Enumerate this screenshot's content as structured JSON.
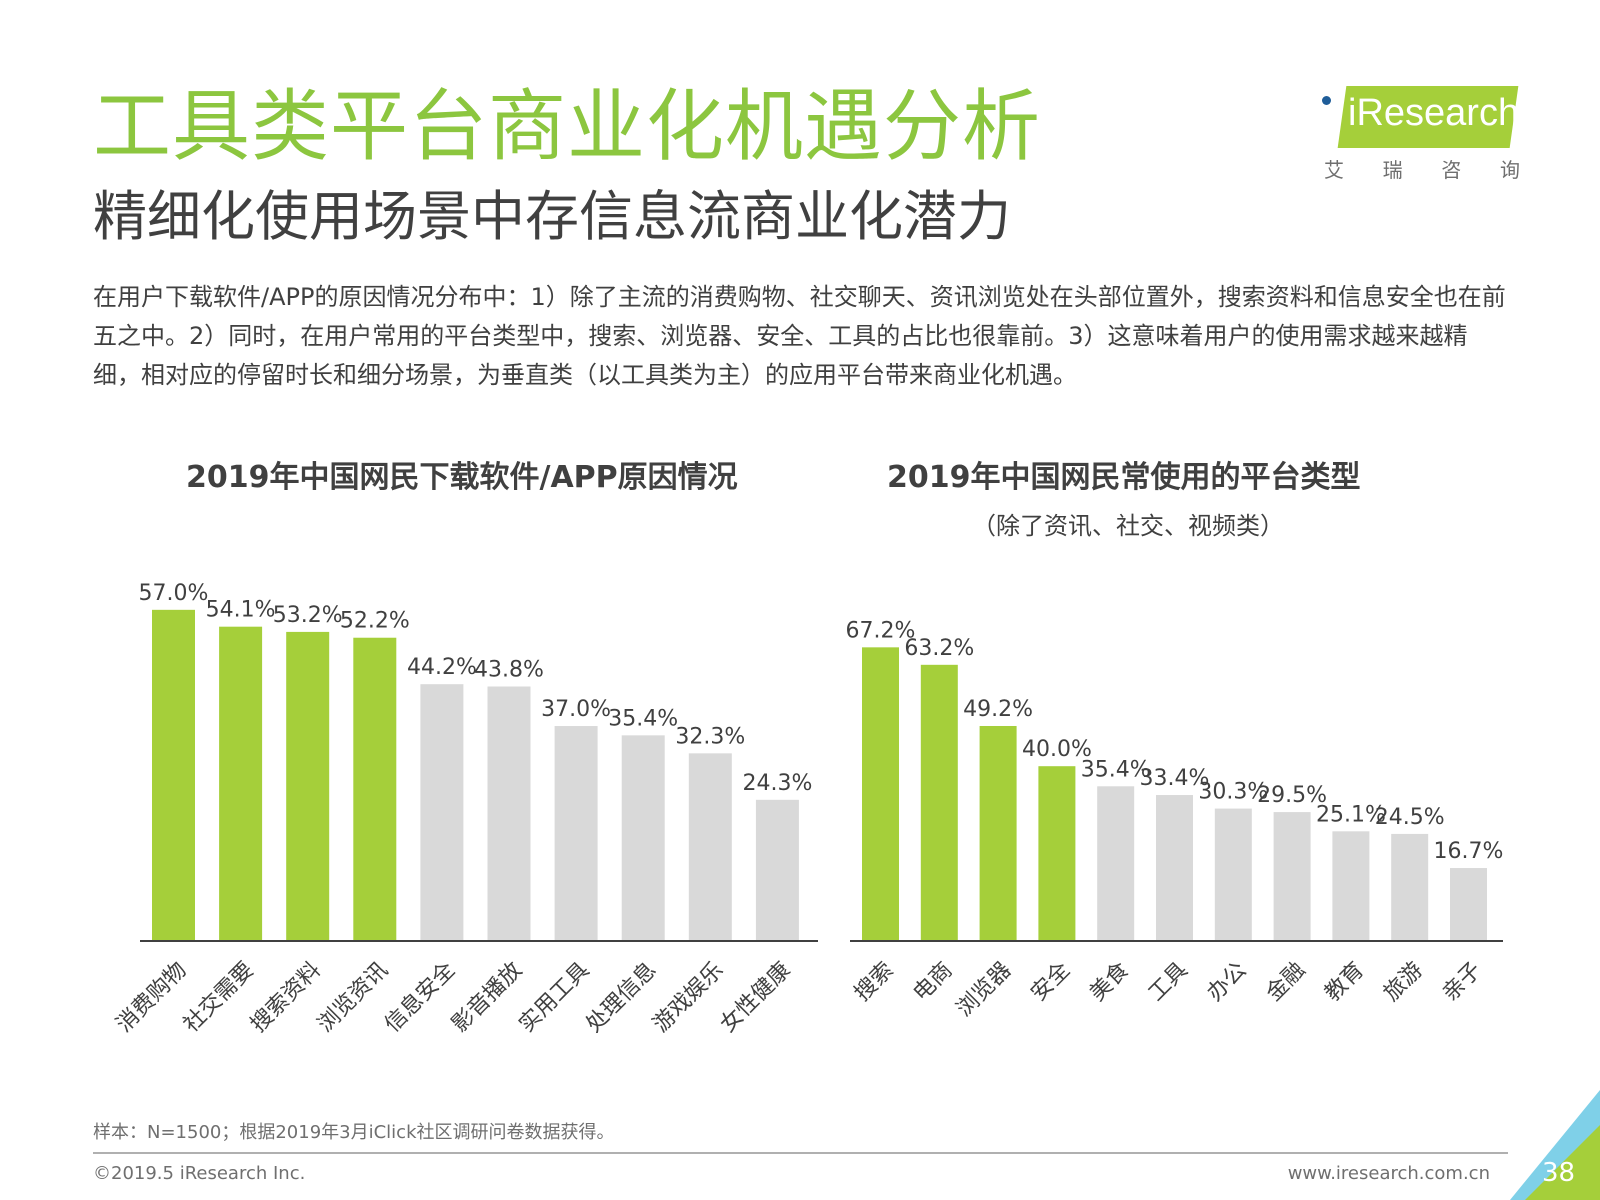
{
  "header": {
    "title": "工具类平台商业化机遇分析",
    "subtitle": "精细化使用场景中存信息流商业化潜力",
    "paragraph": "在用户下载软件/APP的原因情况分布中：1）除了主流的消费购物、社交聊天、资讯浏览处在头部位置外，搜索资料和信息安全也在前五之中。2）同时，在用户常用的平台类型中，搜索、浏览器、安全、工具的占比也很靠前。3）这意味着用户的使用需求越来越精细，相对应的停留时长和细分场景，为垂直类（以工具类为主）的应用平台带来商业化机遇。"
  },
  "logo": {
    "text": "iResearch",
    "cn_chars": [
      "艾",
      "瑞",
      "咨",
      "询"
    ]
  },
  "colors": {
    "accent": "#8cc63f",
    "bar_highlight": "#a5cf3a",
    "bar_gray": "#d9d9d9",
    "text": "#404040"
  },
  "chart_data": [
    {
      "type": "bar",
      "title": "2019年中国网民下载软件/APP原因情况",
      "categories": [
        "消费购物",
        "社交需要",
        "搜索资料",
        "浏览资讯",
        "信息安全",
        "影音播放",
        "实用工具",
        "处理信息",
        "游戏娱乐",
        "女性健康"
      ],
      "values": [
        57.0,
        54.1,
        53.2,
        52.2,
        44.2,
        43.8,
        37.0,
        35.4,
        32.3,
        24.3
      ],
      "value_labels": [
        "57.0%",
        "54.1%",
        "53.2%",
        "52.2%",
        "44.2%",
        "43.8%",
        "37.0%",
        "35.4%",
        "32.3%",
        "24.3%"
      ],
      "highlight_count": 4,
      "ylim": [
        0,
        60
      ],
      "grid": false,
      "legend": "none"
    },
    {
      "type": "bar",
      "title": "2019年中国网民常使用的平台类型",
      "subtitle": "（除了资讯、社交、视频类）",
      "categories": [
        "搜索",
        "电商",
        "浏览器",
        "安全",
        "美食",
        "工具",
        "办公",
        "金融",
        "教育",
        "旅游",
        "亲子"
      ],
      "values": [
        67.2,
        63.2,
        49.2,
        40.0,
        35.4,
        33.4,
        30.3,
        29.5,
        25.1,
        24.5,
        16.7
      ],
      "value_labels": [
        "67.2%",
        "63.2%",
        "49.2%",
        "40.0%",
        "35.4%",
        "33.4%",
        "30.3%",
        "29.5%",
        "25.1%",
        "24.5%",
        "16.7%"
      ],
      "highlight_count": 4,
      "ylim": [
        0,
        70
      ],
      "grid": false,
      "legend": "none"
    }
  ],
  "footer": {
    "note": "样本：N=1500；根据2019年3月iClick社区调研问卷数据获得。",
    "copyright": "©2019.5 iResearch Inc.",
    "website": "www.iresearch.com.cn",
    "page_number": "38"
  }
}
